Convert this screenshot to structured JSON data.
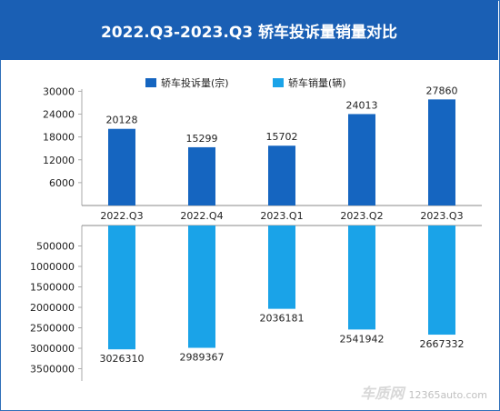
{
  "header": {
    "title": "2022.Q3-2023.Q3 轿车投诉量销量对比"
  },
  "watermark": {
    "brand": "车质网",
    "url": "12365auto.com"
  },
  "colors": {
    "complaints": "#1565c0",
    "sales": "#1aa3e8",
    "header_bg": "#1a5fb4"
  },
  "chart_data": [
    {
      "type": "bar",
      "categories": [
        "2022.Q3",
        "2022.Q4",
        "2023.Q1",
        "2023.Q2",
        "2023.Q3"
      ],
      "series": [
        {
          "name": "轿车投诉量(宗)",
          "values": [
            20128,
            15299,
            15702,
            24013,
            27860
          ],
          "labels": [
            "20128",
            "15299",
            "15702",
            "24013",
            "27860"
          ]
        }
      ],
      "yticks": [
        "6000",
        "12000",
        "18000",
        "24000",
        "30000"
      ],
      "ylim": [
        0,
        32000
      ],
      "legend": "top"
    },
    {
      "type": "bar",
      "categories": [
        "2022.Q3",
        "2022.Q4",
        "2023.Q1",
        "2023.Q2",
        "2023.Q3"
      ],
      "series": [
        {
          "name": "轿车销量(辆)",
          "values": [
            3026310,
            2989367,
            2036181,
            2541942,
            2667332
          ],
          "labels": [
            "3026310",
            "2989367",
            "2036181",
            "2541942",
            "2667332"
          ]
        }
      ],
      "yticks": [
        "500000",
        "1000000",
        "1500000",
        "2000000",
        "2500000",
        "3000000",
        "3500000"
      ],
      "ylim": [
        0,
        3800000
      ],
      "y_inverted": true,
      "legend": "top"
    }
  ]
}
